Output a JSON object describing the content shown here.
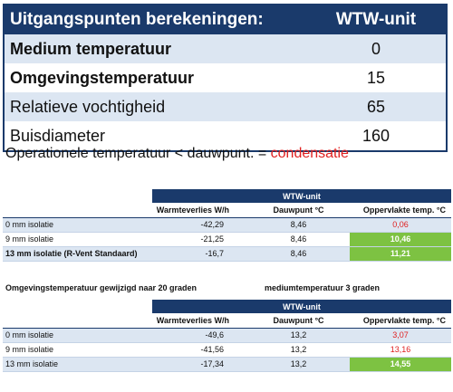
{
  "params": {
    "header_label": "Uitgangspunten berekeningen:",
    "header_value": "WTW-unit",
    "rows": [
      {
        "label": "Medium temperatuur",
        "value": "0"
      },
      {
        "label": "Omgevingstemperatuur",
        "value": "15"
      },
      {
        "label": "Relatieve vochtigheid",
        "value": "65"
      },
      {
        "label": "Buisdiameter",
        "value": "160"
      }
    ]
  },
  "note": {
    "text": "Operationele temperatuur < dauwpunt. = ",
    "emphasis": "condensatie"
  },
  "table1": {
    "title": "WTW-unit",
    "columns": [
      "Warmteverlies W/h",
      "Dauwpunt °C",
      "Oppervlakte temp. °C"
    ],
    "rows": [
      {
        "label": "0 mm isolatie",
        "loss": "-42,29",
        "dew": "8,46",
        "surface": "0,06"
      },
      {
        "label": "9 mm isolatie",
        "loss": "-21,25",
        "dew": "8,46",
        "surface": "10,46"
      },
      {
        "label": "13 mm isolatie (R-Vent Standaard)",
        "loss": "-16,7",
        "dew": "8,46",
        "surface": "11,21"
      }
    ]
  },
  "captions": {
    "left": "Omgevingstemperatuur gewijzigd naar 20 graden",
    "right": "mediumtemperatuur 3 graden"
  },
  "table2": {
    "title": "WTW-unit",
    "columns": [
      "Warmteverlies W/h",
      "Dauwpunt °C",
      "Oppervlakte temp. °C"
    ],
    "rows": [
      {
        "label": "0 mm isolatie",
        "loss": "-49,6",
        "dew": "13,2",
        "surface": "3,07"
      },
      {
        "label": "9 mm isolatie",
        "loss": "-41,56",
        "dew": "13,2",
        "surface": "13,16"
      },
      {
        "label": "13 mm isolatie",
        "loss": "-17,34",
        "dew": "13,2",
        "surface": "14,55"
      }
    ]
  },
  "colors": {
    "navy": "#1a3a6b",
    "light_blue": "#dce6f2",
    "green": "#7dc242",
    "red": "#e02020"
  }
}
